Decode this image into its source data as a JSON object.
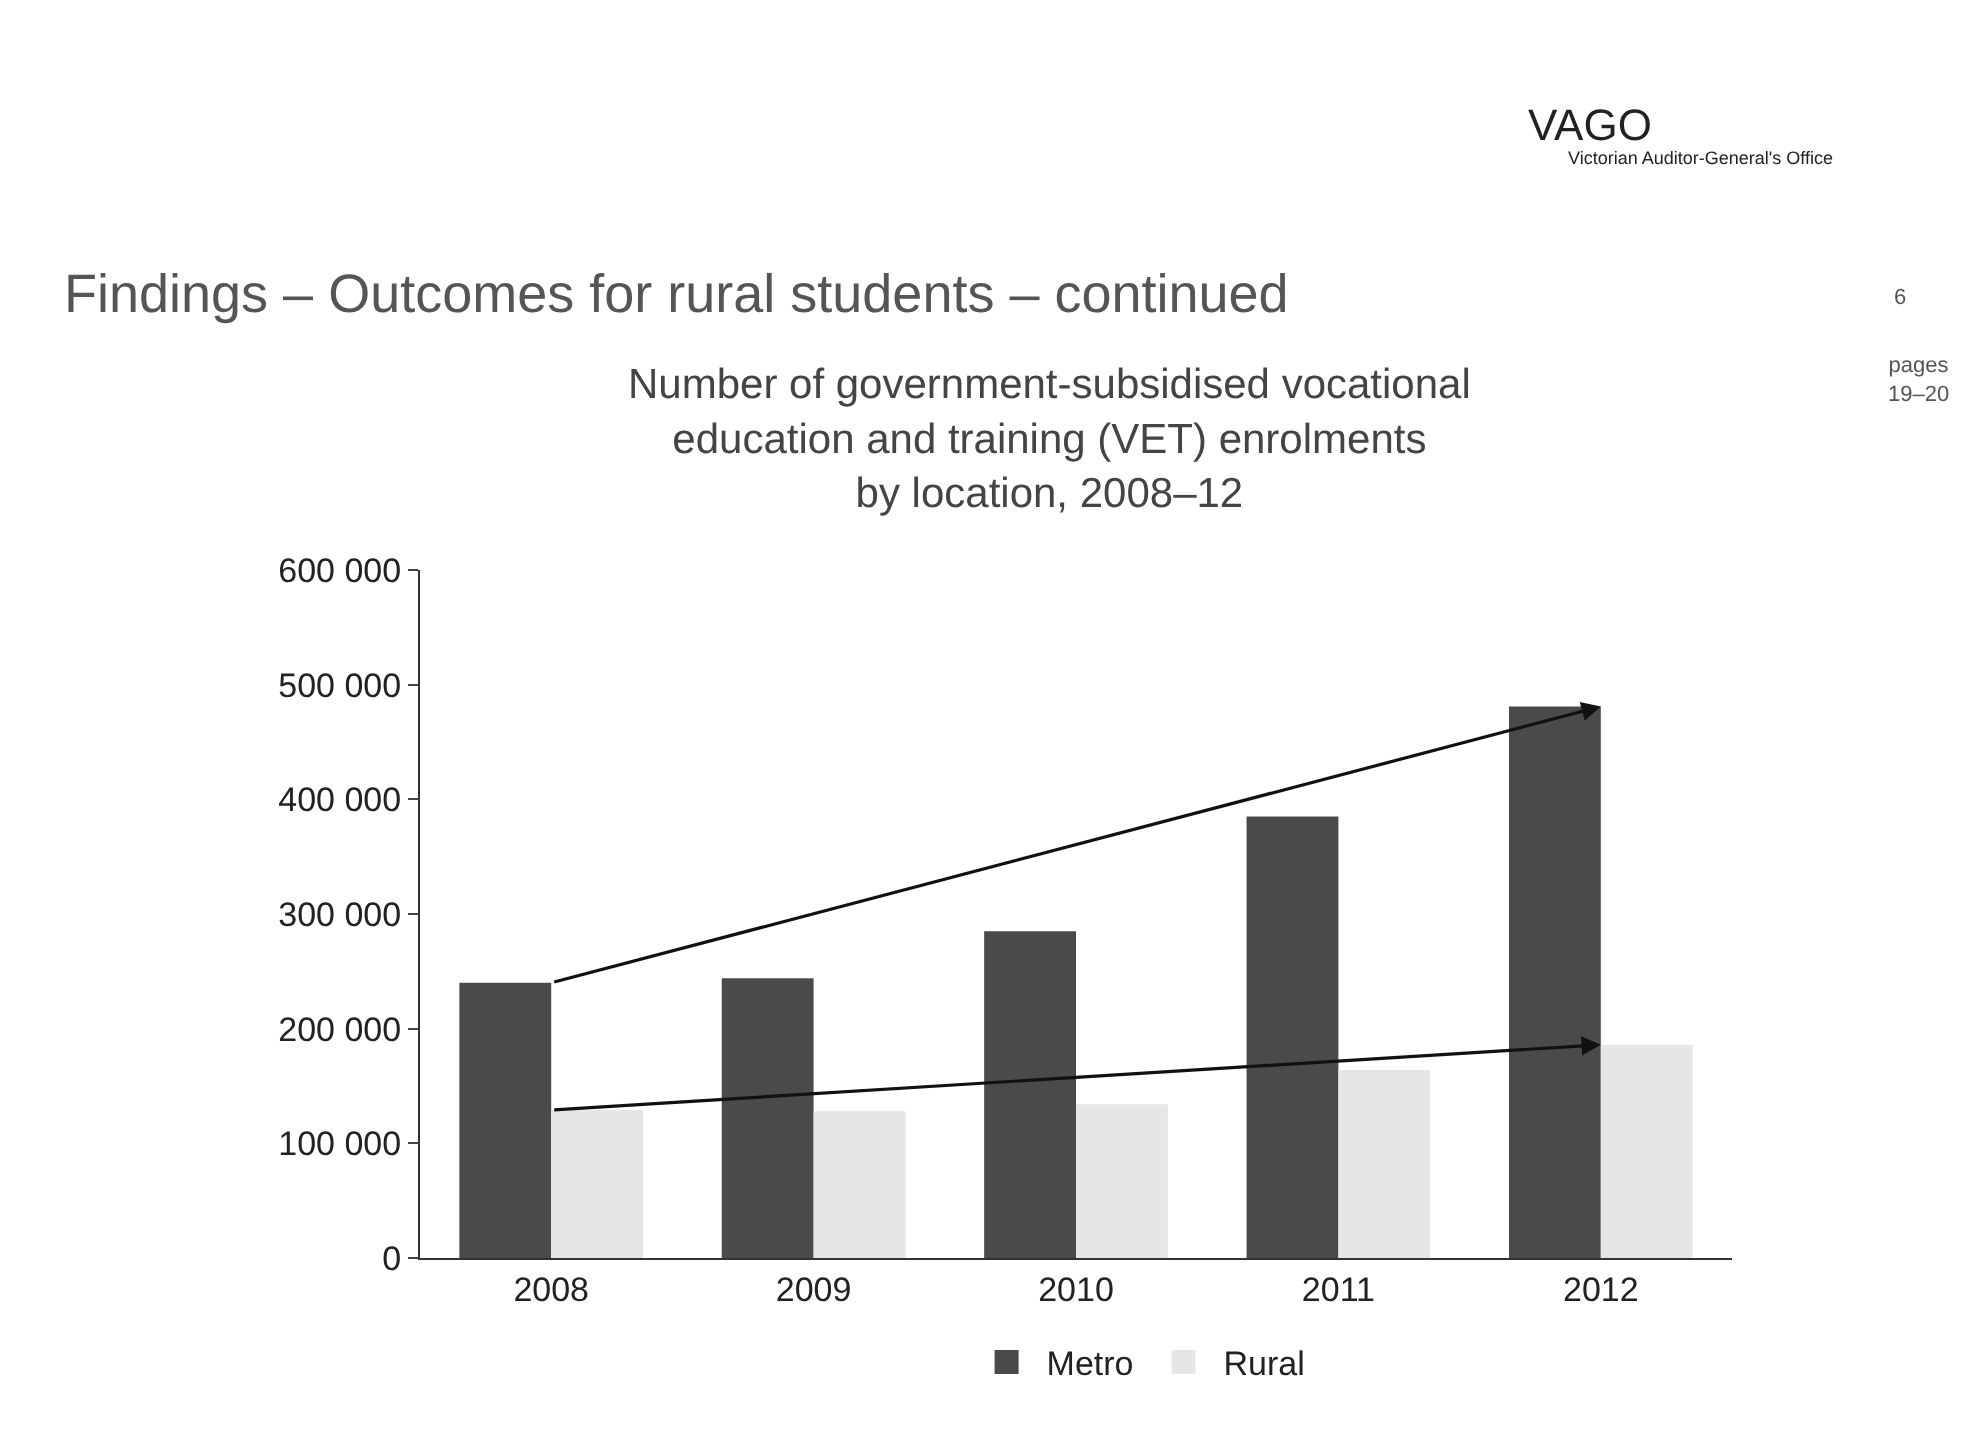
{
  "chart_data": {
    "type": "bar",
    "title": "Findings – Outcomes for rural students – continued",
    "subtitle": "Number of government-subsidised vocational\neducation and training (VET) enrolments\nby location, 2008–12",
    "annotations": [
      "VAGO",
      "Victorian Auditor-General's Office",
      "6",
      "pages\n19–20"
    ],
    "categories": [
      "2008",
      "2009",
      "2010",
      "2011",
      "2012"
    ],
    "series": [
      {
        "name": "Metro",
        "color": "#4a4a4a",
        "values": [
          240000,
          244000,
          285000,
          385000,
          481000
        ]
      },
      {
        "name": "Rural",
        "color": "#e6e6e6",
        "values": [
          129000,
          128000,
          134000,
          164000,
          186000
        ]
      }
    ],
    "ylim": [
      0,
      600000
    ],
    "yticks": [
      {
        "value": 0,
        "label": "0"
      },
      {
        "value": 100000,
        "label": "100 000"
      },
      {
        "value": 200000,
        "label": "200 000"
      },
      {
        "value": 300000,
        "label": "300 000"
      },
      {
        "value": 400000,
        "label": "400 000"
      },
      {
        "value": 500000,
        "label": "500 000"
      },
      {
        "value": 600000,
        "label": "600 000"
      }
    ],
    "legend": "bottom"
  }
}
